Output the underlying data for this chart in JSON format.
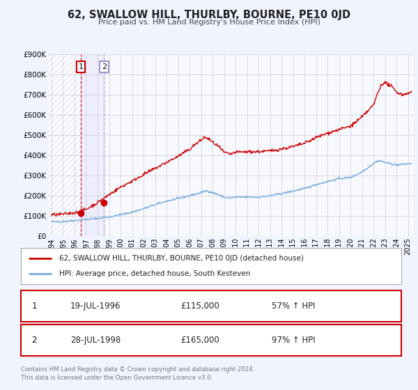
{
  "title": "62, SWALLOW HILL, THURLBY, BOURNE, PE10 0JD",
  "subtitle": "Price paid vs. HM Land Registry's House Price Index (HPI)",
  "ylim": [
    0,
    900000
  ],
  "xlim": [
    1993.7,
    2025.5
  ],
  "yticks": [
    0,
    100000,
    200000,
    300000,
    400000,
    500000,
    600000,
    700000,
    800000,
    900000
  ],
  "ytick_labels": [
    "£0",
    "£100K",
    "£200K",
    "£300K",
    "£400K",
    "£500K",
    "£600K",
    "£700K",
    "£800K",
    "£900K"
  ],
  "xticks": [
    1994,
    1995,
    1996,
    1997,
    1998,
    1999,
    2000,
    2001,
    2002,
    2003,
    2004,
    2005,
    2006,
    2007,
    2008,
    2009,
    2010,
    2011,
    2012,
    2013,
    2014,
    2015,
    2016,
    2017,
    2018,
    2019,
    2020,
    2021,
    2022,
    2023,
    2024,
    2025
  ],
  "fig_bg_color": "#f0f4ff",
  "plot_bg_color": "#f8f8ff",
  "grid_color": "#ccccdd",
  "hatch_color": "#ddddee",
  "sale1_x": 1996.54,
  "sale1_y": 115000,
  "sale2_x": 1998.57,
  "sale2_y": 165000,
  "vline1_x": 1996.54,
  "vline2_x": 1998.57,
  "red_line_color": "#cc0000",
  "blue_line_color": "#7aaddb",
  "sale1_date": "19-JUL-1996",
  "sale1_price": "£115,000",
  "sale1_hpi": "57% ↑ HPI",
  "sale2_date": "28-JUL-1998",
  "sale2_price": "£165,000",
  "sale2_hpi": "97% ↑ HPI",
  "legend_label_red": "62, SWALLOW HILL, THURLBY, BOURNE, PE10 0JD (detached house)",
  "legend_label_blue": "HPI: Average price, detached house, South Kesteven",
  "footer_line1": "Contains HM Land Registry data © Crown copyright and database right 2024.",
  "footer_line2": "This data is licensed under the Open Government Licence v3.0."
}
